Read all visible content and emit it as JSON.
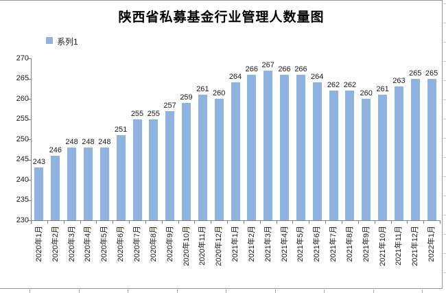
{
  "title": "陕西省私募基金行业管理人数量图",
  "legend": {
    "label": "系列1",
    "position": "top-left"
  },
  "chart_data": {
    "type": "bar",
    "title": "陕西省私募基金行业管理人数量图",
    "series_name": "系列1",
    "categories": [
      "2020年1月",
      "2020年2月",
      "2020年3月",
      "2020年4月",
      "2020年5月",
      "2020年6月",
      "2020年7月",
      "2020年8月",
      "2020年9月",
      "2020年10月",
      "2020年11月",
      "2020年12月",
      "2021年1月",
      "2021年2月",
      "2021年3月",
      "2021年4月",
      "2021年5月",
      "2021年6月",
      "2021年7月",
      "2021年8月",
      "2021年9月",
      "2021年10月",
      "2021年11月",
      "2021年12月",
      "2022年1月"
    ],
    "values": [
      243,
      246,
      248,
      248,
      248,
      251,
      255,
      255,
      257,
      259,
      261,
      260,
      264,
      266,
      267,
      266,
      266,
      264,
      262,
      262,
      260,
      261,
      263,
      265,
      265
    ],
    "ylim": [
      230,
      270
    ],
    "ytick_step": 5,
    "yticks": [
      230,
      235,
      240,
      245,
      250,
      255,
      260,
      265,
      270
    ],
    "xlabel": "",
    "ylabel": "",
    "grid": false,
    "data_labels": true,
    "x_label_rotation_deg": -90,
    "bar_color": "#8FB3E0",
    "axis_color": "#7F7F7F",
    "label_color": "#1a1a1a",
    "chart_border_color": "#969696",
    "background_color": "#FFFFFF"
  }
}
